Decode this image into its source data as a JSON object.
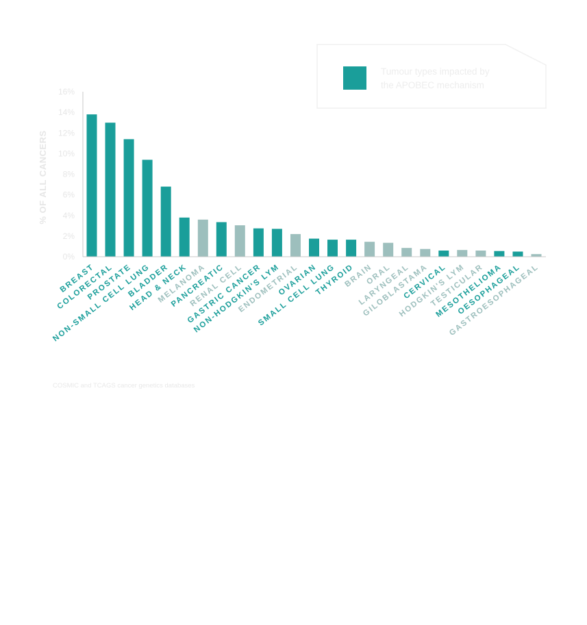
{
  "chart_data": {
    "type": "bar",
    "ylabel": "% OF ALL CANCERS",
    "ylim": [
      0,
      16
    ],
    "yticks": [
      "0%",
      "2%",
      "4%",
      "6%",
      "8%",
      "10%",
      "12%",
      "14%",
      "16%"
    ],
    "categories": [
      "BREAST",
      "COLORECTAL",
      "PROSTATE",
      "NON-SMALL CELL LUNG",
      "BLADDER",
      "HEAD & NECK",
      "MELANOMA",
      "PANCREATIC",
      "RENAL CELL",
      "GASTRIC CANCER",
      "NON-HODGKIN'S LYM",
      "ENDOMETRIAL",
      "OVARIAN",
      "SMALL CELL LUNG",
      "THYROID",
      "BRAIN",
      "ORAL",
      "LARYNGEAL",
      "GILOBLASTAMA",
      "CERVICAL",
      "HODGKIN'S LYM",
      "TESTICULAR",
      "MESOTHELIOMA",
      "OESOPHAGEAL",
      "GASTROESOPHAGEAL"
    ],
    "values": [
      13.8,
      13.0,
      11.4,
      9.4,
      6.8,
      3.8,
      3.6,
      3.35,
      3.05,
      2.75,
      2.7,
      2.2,
      1.75,
      1.65,
      1.65,
      1.45,
      1.35,
      0.85,
      0.75,
      0.6,
      0.65,
      0.6,
      0.55,
      0.5,
      0.25
    ],
    "impacted": [
      true,
      true,
      true,
      true,
      true,
      true,
      false,
      true,
      false,
      true,
      true,
      false,
      true,
      true,
      true,
      false,
      false,
      false,
      false,
      true,
      false,
      false,
      true,
      true,
      false
    ],
    "legend": [
      {
        "label": "Tumour types impacted by the APOBEC mechanism",
        "color": "#1a9e9a"
      }
    ],
    "legend_lines": [
      "Tumour types impacted by",
      "the APOBEC mechanism"
    ],
    "legend_placement": "top-right",
    "grid": false
  },
  "colors": {
    "impacted": "#1a9e9a",
    "not_impacted": "#9dbfbd",
    "axis": "#c8c8c8"
  },
  "source": "COSMIC and TCAGS cancer genetics databases"
}
